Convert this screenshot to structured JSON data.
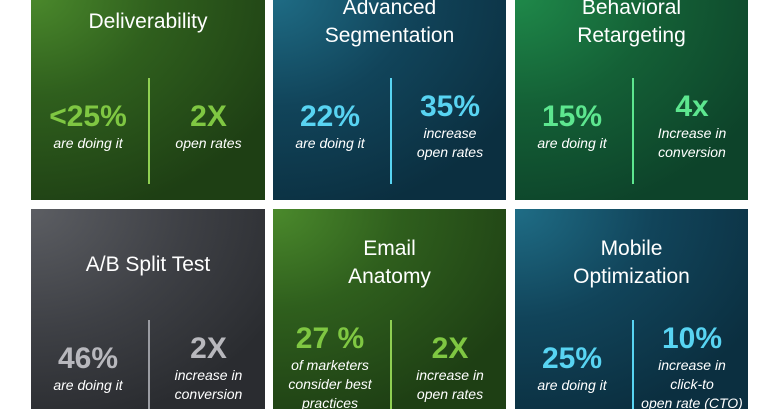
{
  "tiles": [
    {
      "title_lines": [
        "Deliverability"
      ],
      "left_value": "<25%",
      "left_caption": [
        "are doing it"
      ],
      "right_value": "2X",
      "right_caption": [
        "open rates"
      ]
    },
    {
      "title_lines": [
        "Advanced",
        "Segmentation"
      ],
      "left_value": "22%",
      "left_caption": [
        "are doing it"
      ],
      "right_value": "35%",
      "right_caption": [
        "increase",
        "open rates"
      ]
    },
    {
      "title_lines": [
        "Behavioral",
        "Retargeting"
      ],
      "left_value": "15%",
      "left_caption": [
        "are doing it"
      ],
      "right_value": "4x",
      "right_caption": [
        "Increase in",
        "conversion"
      ]
    },
    {
      "title_lines": [
        "A/B Split Test"
      ],
      "left_value": "46%",
      "left_caption": [
        "are doing it"
      ],
      "right_value": "2X",
      "right_caption": [
        "increase in",
        "conversion"
      ]
    },
    {
      "title_lines": [
        "Email",
        "Anatomy"
      ],
      "left_value": "27 %",
      "left_caption": [
        "of marketers",
        "consider best",
        "practices"
      ],
      "right_value": "2X",
      "right_caption": [
        "increase in",
        "open rates"
      ]
    },
    {
      "title_lines": [
        "Mobile",
        "Optimization"
      ],
      "left_value": "25%",
      "left_caption": [
        "are doing it"
      ],
      "right_value": "10%",
      "right_caption": [
        "increase in",
        "click-to",
        "open rate (CTO)"
      ]
    }
  ],
  "colors": {
    "green_accent": "#7fc742",
    "cyan_accent": "#58d4f2",
    "mint_accent": "#5de68f",
    "grey_accent": "#b8b8bd"
  }
}
